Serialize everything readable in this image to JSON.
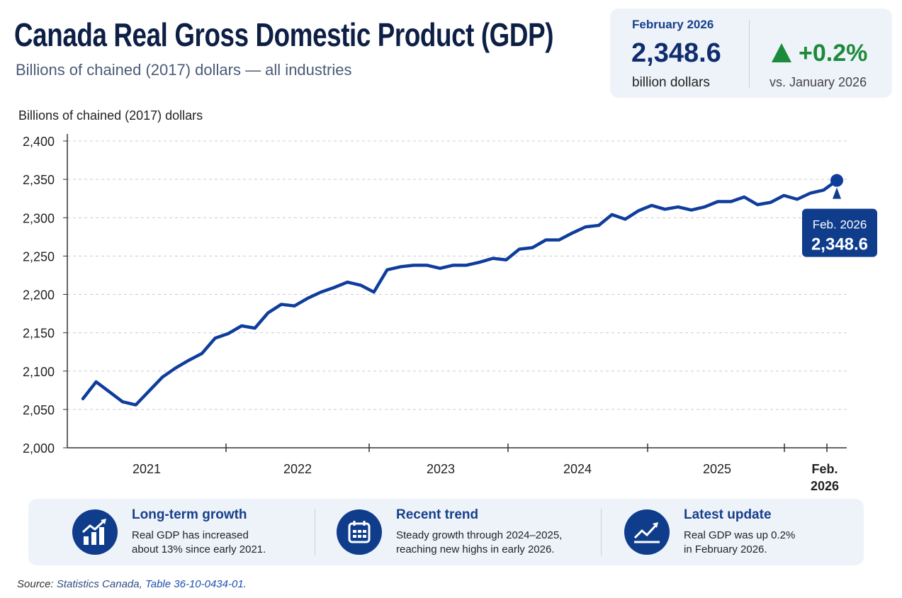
{
  "header": {
    "title": "Canada Real Gross Domestic Product (GDP)",
    "subtitle": "Billions of chained (2017) dollars — all industries"
  },
  "kpi": {
    "period": "February 2026",
    "value": "2,348.6",
    "unit": "billion dollars",
    "change": "+0.2%",
    "change_icon": "triangle-up-icon",
    "comparison": "vs. January 2026",
    "change_color": "#1b8a3a"
  },
  "chart_data": {
    "type": "line",
    "title": "",
    "ylabel": "Billions of chained (2017) dollars",
    "xlabel": "",
    "ylim": [
      2000,
      2400
    ],
    "yticks": [
      "2,000",
      "2,050",
      "2,100",
      "2,150",
      "2,200",
      "2,250",
      "2,300",
      "2,350",
      "2,400"
    ],
    "ytick_values": [
      2000,
      2050,
      2100,
      2150,
      2200,
      2250,
      2300,
      2350,
      2400
    ],
    "xtick_labels": [
      "2021",
      "2022",
      "2023",
      "2024",
      "2025",
      "Feb. 2026"
    ],
    "grid": "horizontal dashed",
    "color": "#0f3d9c",
    "series": [
      {
        "values": [
          2064,
          2086,
          2073,
          2060,
          2056,
          2074,
          2092,
          2104,
          2114,
          2123,
          2143,
          2149,
          2159,
          2156,
          2176,
          2187,
          2185,
          2195,
          2203,
          2209,
          2216,
          2212,
          2203,
          2232,
          2236,
          2238,
          2238,
          2234,
          2238,
          2238,
          2242,
          2247,
          2245,
          2259,
          2261,
          2271,
          2271,
          2280,
          2288,
          2290,
          2304,
          2298,
          2309,
          2316,
          2311,
          2314,
          2310,
          2314,
          2321,
          2321,
          2327,
          2317,
          2320,
          2329,
          2324,
          2332,
          2336,
          2348.6
        ]
      }
    ],
    "annotation": {
      "label": "Feb. 2026",
      "value": "2,348.6"
    }
  },
  "highlights": [
    {
      "icon": "bar-chart-growth-icon",
      "title": "Long-term growth",
      "text1": "Real GDP has increased",
      "text2": "about 13% since early 2021."
    },
    {
      "icon": "calendar-icon",
      "title": "Recent trend",
      "text1": "Steady growth through 2024–2025,",
      "text2": "reaching new highs in early 2026."
    },
    {
      "icon": "trend-up-icon",
      "title": "Latest update",
      "text1": "Real GDP was up 0.2%",
      "text2": "in February 2026."
    }
  ],
  "source": {
    "label": "Source:",
    "org": "Statistics Canada,",
    "table": "Table 36-10-0434-01."
  }
}
